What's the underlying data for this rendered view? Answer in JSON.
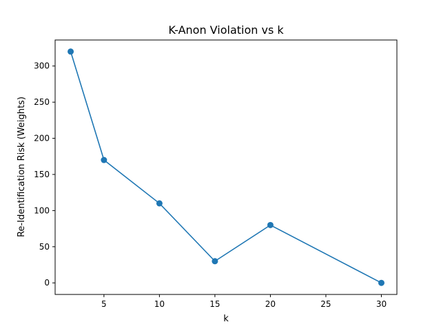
{
  "chart_data": {
    "type": "line",
    "title": "K-Anon Violation vs k",
    "xlabel": "k",
    "ylabel": "Re-Identification Risk (Weights)",
    "x": [
      2,
      5,
      10,
      15,
      20,
      30
    ],
    "series": [
      {
        "values": [
          320,
          170,
          110,
          30,
          80,
          0
        ],
        "color": "#1f77b4",
        "marker": "circle"
      }
    ],
    "xlim": [
      0.6,
      31.4
    ],
    "ylim": [
      -16,
      336
    ],
    "xticks": [
      5,
      10,
      15,
      20,
      25,
      30
    ],
    "yticks": [
      0,
      50,
      100,
      150,
      200,
      250,
      300
    ],
    "grid": false,
    "legend": "none"
  }
}
